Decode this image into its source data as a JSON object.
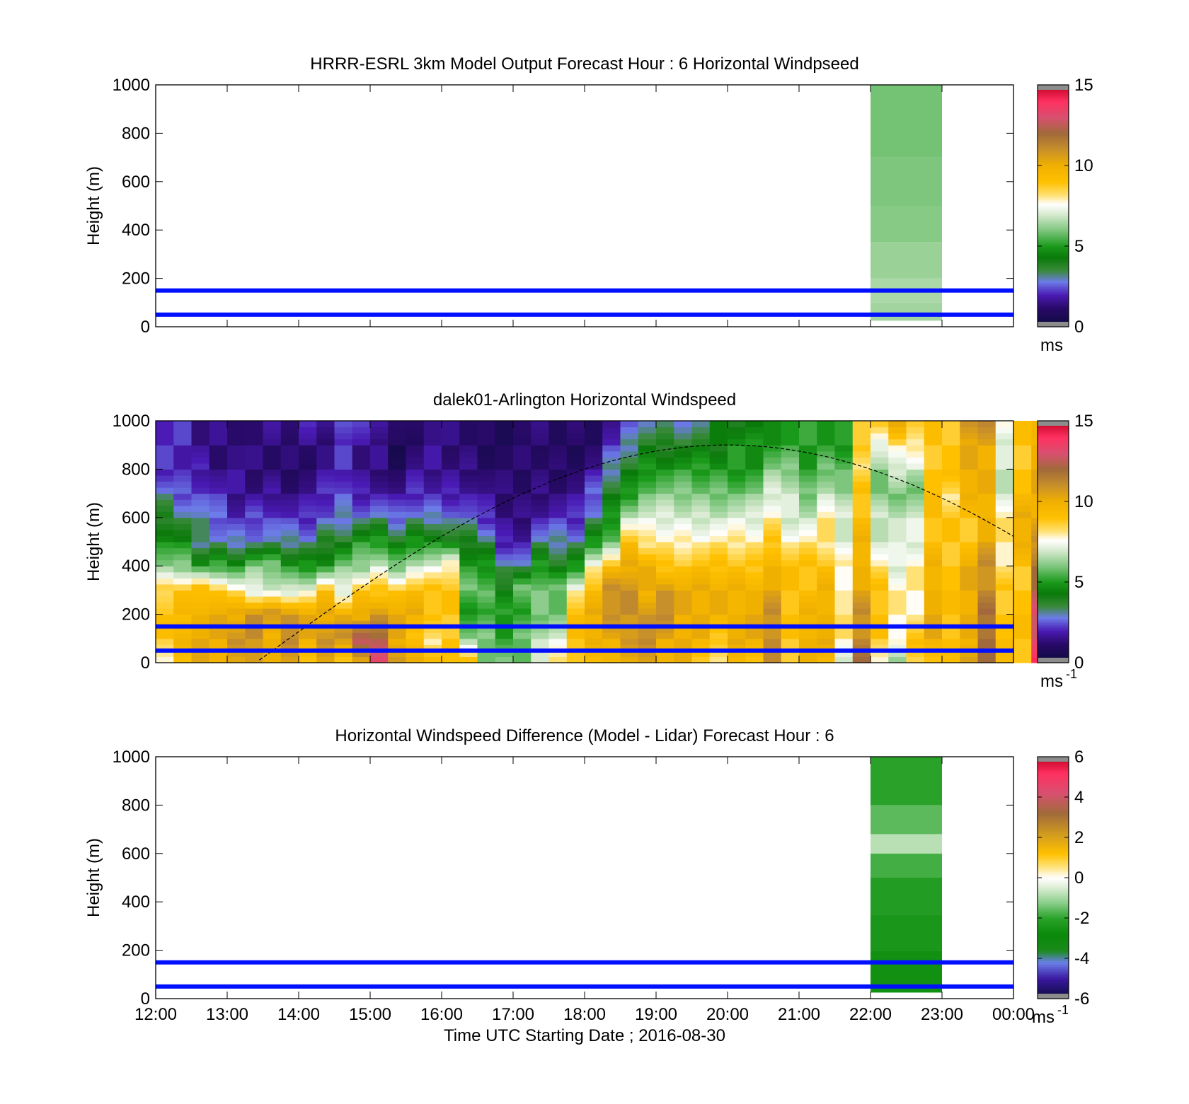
{
  "figure": {
    "xaxis_label": "Time UTC  Starting Date ; 2016-08-30"
  },
  "chart_data": [
    {
      "type": "heatmap",
      "title": "HRRR-ESRL 3km Model Output   Forecast Hour : 6 Horizontal Windpseed",
      "ylabel": "Height (m)",
      "xlabel": "",
      "x_ticks": [
        "12:00",
        "13:00",
        "14:00",
        "15:00",
        "16:00",
        "17:00",
        "18:00",
        "19:00",
        "20:00",
        "21:00",
        "22:00",
        "23:00",
        "00:00"
      ],
      "y_ticks": [
        0,
        200,
        400,
        600,
        800,
        1000
      ],
      "ylim": [
        0,
        1000
      ],
      "colorbar": {
        "ticks": [
          0,
          5,
          10,
          15
        ],
        "range": [
          0,
          15
        ],
        "unit": "ms",
        "unit_sup": ""
      },
      "show_xtick_labels": false,
      "data_block": {
        "time_start_hour": 22,
        "time_end_hour": 23,
        "cells": [
          {
            "h0": 25,
            "h1": 100,
            "v": 6.4
          },
          {
            "h0": 100,
            "h1": 200,
            "v": 6.5
          },
          {
            "h0": 200,
            "h1": 350,
            "v": 6.3
          },
          {
            "h0": 350,
            "h1": 500,
            "v": 6.1
          },
          {
            "h0": 500,
            "h1": 700,
            "v": 6.0
          },
          {
            "h0": 700,
            "h1": 1000,
            "v": 5.9
          }
        ]
      },
      "hlines_m": [
        50,
        150
      ],
      "curve": false
    },
    {
      "type": "heatmap",
      "title": "dalek01-Arlington  Horizontal Windspeed",
      "ylabel": "Height (m)",
      "xlabel": "",
      "x_ticks": [
        "12:00",
        "13:00",
        "14:00",
        "15:00",
        "16:00",
        "17:00",
        "18:00",
        "19:00",
        "20:00",
        "21:00",
        "22:00",
        "23:00",
        "00:00"
      ],
      "y_ticks": [
        0,
        200,
        400,
        600,
        800,
        1000
      ],
      "ylim": [
        0,
        1000
      ],
      "colorbar": {
        "ticks": [
          0,
          5,
          10,
          15
        ],
        "range": [
          0,
          15
        ],
        "unit": "ms",
        "unit_sup": "-1"
      },
      "show_xtick_labels": false,
      "profiles": {
        "time_start_hour": 12,
        "column_minutes": 15,
        "heights_m": [
          0,
          100,
          200,
          300,
          400,
          500,
          600,
          700,
          800,
          900,
          1000
        ],
        "columns": [
          [
            8,
            9,
            9,
            8.5,
            6,
            5,
            4,
            3,
            2,
            2,
            2
          ],
          [
            9,
            10,
            9.5,
            9,
            6,
            4.5,
            3.5,
            2.5,
            2,
            2,
            2
          ],
          [
            10,
            10,
            10,
            9.5,
            5,
            3,
            3,
            2.5,
            2,
            1.5,
            1.5
          ],
          [
            10,
            10,
            10,
            9,
            5.5,
            3,
            2.5,
            2,
            1.5,
            1.5,
            1.5
          ],
          [
            10,
            11,
            10,
            8,
            5,
            3,
            2,
            1.5,
            1.5,
            1.5,
            1.5
          ],
          [
            11,
            11,
            11,
            7,
            6,
            3,
            2.5,
            1.5,
            1.2,
            1.2,
            1.2
          ],
          [
            10,
            10,
            11,
            7,
            6,
            3,
            2.5,
            1.8,
            1.2,
            1.2,
            1.5
          ],
          [
            10,
            11,
            11,
            7,
            5,
            3,
            2,
            1.5,
            1.2,
            1.2,
            1.5
          ],
          [
            9,
            10,
            10,
            7.5,
            5,
            3,
            2,
            1.5,
            1.2,
            1.5,
            2
          ],
          [
            10,
            11,
            10,
            9,
            5,
            4,
            2.5,
            2,
            1.5,
            1.5,
            2
          ],
          [
            9,
            11,
            10,
            7,
            6,
            4,
            3,
            2.5,
            2,
            2,
            2.5
          ],
          [
            10,
            13,
            10,
            9,
            6,
            5,
            3,
            2,
            1.5,
            1.5,
            2
          ],
          [
            13,
            12,
            11,
            9,
            7,
            5,
            3,
            2,
            1.5,
            1.5,
            2
          ],
          [
            11,
            10,
            10,
            9,
            6,
            4,
            2.5,
            1.5,
            1,
            0.8,
            1
          ],
          [
            10,
            9,
            10,
            9,
            7,
            5,
            3,
            2,
            1.5,
            1.2,
            1.5
          ],
          [
            10,
            8,
            9,
            9,
            7,
            5,
            3,
            2,
            1.5,
            1.5,
            1.5
          ],
          [
            9,
            9,
            9,
            9,
            8,
            4,
            3,
            2,
            1.5,
            1.2,
            1.2
          ],
          [
            9,
            6,
            5,
            6,
            5,
            4,
            2.5,
            2,
            1.5,
            1.2,
            1.2
          ],
          [
            6,
            6,
            5,
            6,
            5,
            3.5,
            2,
            1.5,
            1.2,
            1,
            1
          ],
          [
            6,
            5,
            5,
            4,
            3.5,
            2,
            1.5,
            1.2,
            1,
            1,
            1
          ],
          [
            6,
            6,
            5,
            6,
            3,
            2,
            1.5,
            1.2,
            1,
            1,
            1.2
          ],
          [
            7,
            7,
            6,
            6,
            5,
            3,
            2,
            1.5,
            1.2,
            1,
            1.2
          ],
          [
            8,
            7,
            6,
            6,
            4,
            3,
            2,
            1.5,
            1.2,
            1,
            1
          ],
          [
            9,
            9,
            9,
            8,
            5,
            3,
            2,
            1.5,
            1.2,
            1,
            1.2
          ],
          [
            9,
            10,
            10,
            9,
            8,
            5,
            3,
            2.5,
            1.5,
            1.2,
            1.2
          ],
          [
            10,
            10,
            11,
            11,
            9,
            6,
            5,
            4,
            3,
            2,
            1.5
          ],
          [
            10,
            11,
            11,
            11,
            10,
            9,
            7,
            5,
            4,
            3,
            2
          ],
          [
            10,
            11,
            11,
            10,
            10,
            8,
            7,
            6,
            5,
            4,
            3
          ],
          [
            10,
            10,
            11,
            11,
            9,
            8,
            7,
            6,
            5,
            4,
            3
          ],
          [
            10,
            10,
            10,
            10,
            9,
            8,
            7,
            6,
            5,
            4,
            3
          ],
          [
            9,
            10,
            10,
            10,
            9,
            8,
            7,
            6,
            5,
            4,
            3
          ],
          [
            8,
            9,
            10,
            10,
            9,
            8,
            7,
            6,
            5,
            4,
            4
          ],
          [
            9,
            10,
            10,
            10,
            9,
            8,
            7,
            6,
            5,
            5,
            4
          ],
          [
            9,
            10,
            10,
            10,
            9,
            8,
            7,
            6,
            5,
            5,
            4
          ],
          [
            11,
            11,
            11,
            10,
            10,
            9,
            8,
            7,
            6,
            5,
            5
          ],
          [
            9,
            9,
            9,
            9,
            9,
            8,
            7,
            7,
            6,
            5,
            5
          ],
          [
            10,
            10,
            10,
            9,
            9,
            8,
            7,
            6,
            5,
            5,
            5
          ],
          [
            9,
            10,
            10,
            10,
            9,
            8,
            8,
            7,
            6,
            5,
            5
          ],
          [
            7,
            8,
            8,
            8,
            8,
            7,
            7,
            6,
            6,
            5,
            5
          ],
          [
            12,
            11,
            11,
            10,
            10,
            10,
            9,
            9,
            8,
            9,
            9
          ],
          [
            8,
            9,
            9,
            9,
            8,
            7,
            7,
            6,
            6,
            7,
            9
          ],
          [
            6,
            8,
            8,
            8,
            7,
            7,
            7,
            6,
            7,
            8,
            10
          ],
          [
            8,
            9,
            8,
            8,
            8,
            7,
            7,
            6,
            7,
            8,
            9
          ],
          [
            9,
            10,
            10,
            10,
            10,
            9,
            9,
            9,
            9,
            9,
            9
          ],
          [
            9,
            9,
            9,
            9,
            9,
            9,
            9,
            8,
            9,
            9,
            9
          ],
          [
            11,
            10,
            10,
            10,
            10,
            9,
            9,
            10,
            10,
            10,
            11
          ],
          [
            12,
            12,
            12,
            11,
            11,
            10,
            10,
            10,
            10,
            10,
            11
          ],
          [
            9,
            9,
            9,
            9,
            8,
            8,
            8,
            7,
            7,
            7,
            8
          ],
          [
            9,
            9,
            9,
            9,
            9,
            10,
            10,
            9,
            9,
            9,
            9
          ],
          [
            14,
            13,
            13,
            12,
            12,
            11,
            10,
            10,
            10,
            10,
            10
          ]
        ]
      },
      "hlines_m": [
        50,
        150
      ],
      "curve": true
    },
    {
      "type": "heatmap",
      "title": "Horizontal Windspeed Difference (Model - Lidar) Forecast Hour : 6",
      "ylabel": "Height (m)",
      "xlabel": "Time UTC  Starting Date ; 2016-08-30",
      "x_ticks": [
        "12:00",
        "13:00",
        "14:00",
        "15:00",
        "16:00",
        "17:00",
        "18:00",
        "19:00",
        "20:00",
        "21:00",
        "22:00",
        "23:00",
        "00:00"
      ],
      "y_ticks": [
        0,
        200,
        400,
        600,
        800,
        1000
      ],
      "ylim": [
        0,
        1000
      ],
      "colorbar": {
        "ticks": [
          -6,
          -4,
          -2,
          0,
          2,
          4,
          6
        ],
        "range": [
          -6,
          6
        ],
        "unit": "ms",
        "unit_sup": "-1"
      },
      "show_xtick_labels": true,
      "data_block": {
        "time_start_hour": 22,
        "time_end_hour": 23,
        "cells": [
          {
            "h0": 25,
            "h1": 200,
            "v": -2.6
          },
          {
            "h0": 200,
            "h1": 350,
            "v": -2.4
          },
          {
            "h0": 350,
            "h1": 500,
            "v": -2.2
          },
          {
            "h0": 500,
            "h1": 600,
            "v": -1.8
          },
          {
            "h0": 600,
            "h1": 680,
            "v": -0.8
          },
          {
            "h0": 680,
            "h1": 800,
            "v": -1.6
          },
          {
            "h0": 800,
            "h1": 1000,
            "v": -2.0
          }
        ]
      },
      "hlines_m": [
        50,
        150
      ],
      "curve": false
    }
  ]
}
